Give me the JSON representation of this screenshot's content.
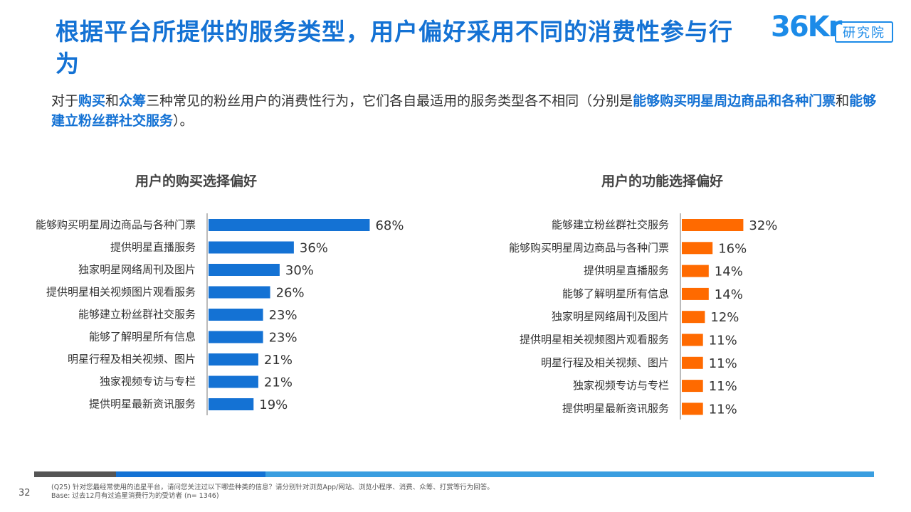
{
  "title": "根据平台所提供的服务类型，用户偏好采用不同的消费性参与行为",
  "logo": {
    "mark": "36Kr",
    "box": "研究院"
  },
  "subtitle": {
    "p1": "对于",
    "b1": "购买",
    "p2": "和",
    "b2": "众筹",
    "p3": "三种常见的粉丝用户的消费性行为，它们各自最适用的服务类型各不相同（分别是",
    "b3": "能够购买明星周边商品和各种门票",
    "p4": "和",
    "b4": "能够建立粉丝群社交服务",
    "p5": "）。"
  },
  "chart_data": [
    {
      "type": "bar",
      "orientation": "horizontal",
      "title": "用户的购买选择偏好",
      "color": "#1472d4",
      "categories": [
        "能够购买明星周边商品与各种门票",
        "提供明星直播服务",
        "独家明星网络周刊及图片",
        "提供明星相关视频图片观看服务",
        "能够建立粉丝群社交服务",
        "能够了解明星所有信息",
        "明星行程及相关视频、图片",
        "独家视频专访与专栏",
        "提供明星最新资讯服务"
      ],
      "values": [
        68,
        36,
        30,
        26,
        23,
        23,
        21,
        21,
        19
      ],
      "labels": [
        "68%",
        "36%",
        "30%",
        "26%",
        "23%",
        "23%",
        "21%",
        "21%",
        "19%"
      ]
    },
    {
      "type": "bar",
      "orientation": "horizontal",
      "title": "用户的功能选择偏好",
      "color": "#ff6a00",
      "categories": [
        "能够建立粉丝群社交服务",
        "能够购买明星周边商品与各种门票",
        "提供明星直播服务",
        "能够了解明星所有信息",
        "独家明星网络周刊及图片",
        "提供明星相关视频图片观看服务",
        "明星行程及相关视频、图片",
        "独家视频专访与专栏",
        "提供明星最新资讯服务"
      ],
      "values": [
        32,
        16,
        14,
        14,
        12,
        11,
        11,
        11,
        11
      ],
      "labels": [
        "32%",
        "16%",
        "14%",
        "14%",
        "12%",
        "11%",
        "11%",
        "11%",
        "11%"
      ]
    }
  ],
  "footer": {
    "page": "32",
    "note1": "(Q25) 针对您最经常使用的追星平台，请问您关注过以下哪些种类的信息？请分别针对浏览App/网站、浏览小程序、消费、众筹、打赏等行为回答。",
    "note2": "Base: 过去12月有过追星消费行为的受访者 (n= 1346)",
    "band_colors": [
      "#555555",
      "#1472d4",
      "#3a9ee0"
    ]
  }
}
